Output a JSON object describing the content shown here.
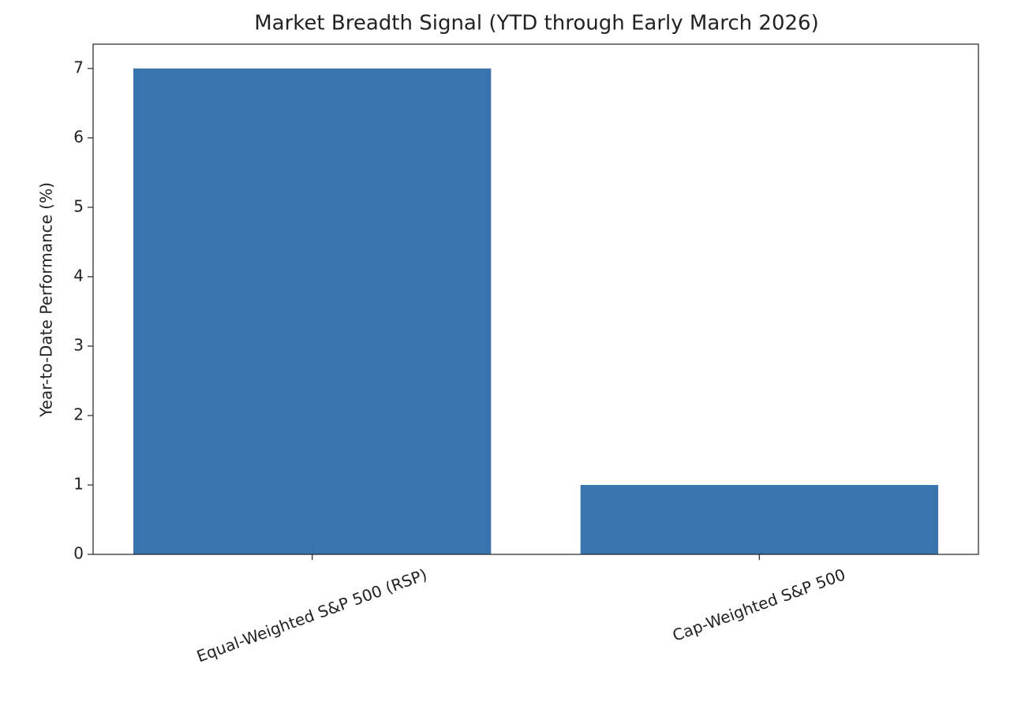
{
  "chart_data": {
    "type": "bar",
    "title": "Market Breadth Signal (YTD through Early March 2026)",
    "ylabel": "Year-to-Date Performance (%)",
    "categories": [
      "Equal-Weighted S&P 500 (RSP)",
      "Cap-Weighted S&P 500"
    ],
    "values": [
      7,
      1
    ],
    "color": "#3a74ae",
    "ylim": [
      0,
      7.35
    ],
    "yticks": [
      0,
      1,
      2,
      3,
      4,
      5,
      6,
      7
    ]
  }
}
